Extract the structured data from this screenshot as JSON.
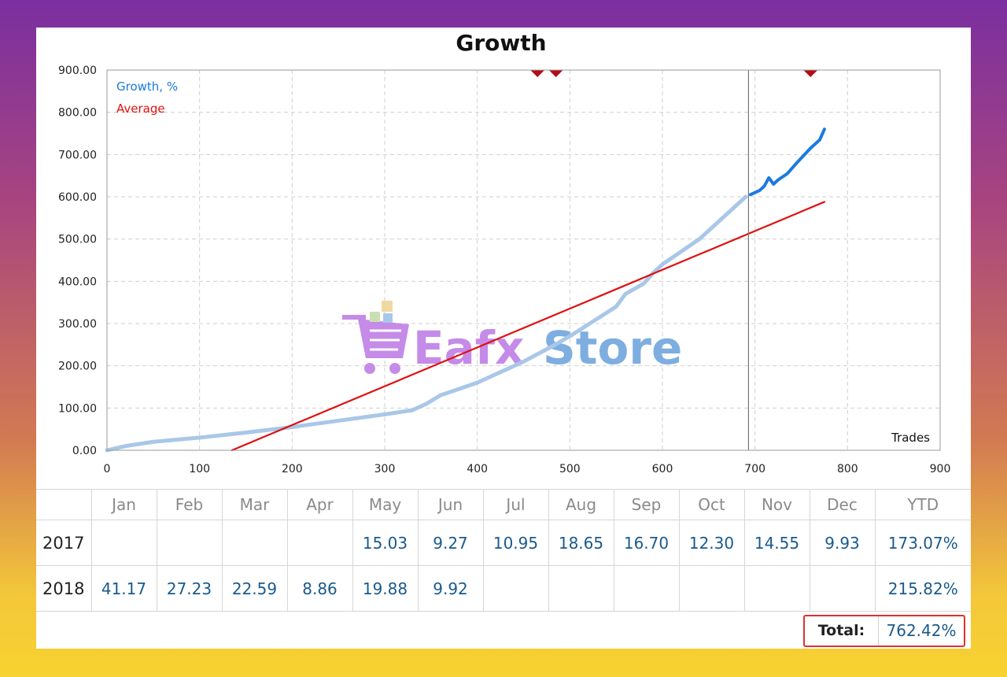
{
  "chart_data": {
    "type": "line",
    "title": "Growth",
    "xlabel": "Trades",
    "ylabel": "",
    "xlim": [
      0,
      900
    ],
    "ylim": [
      0,
      900
    ],
    "xticks": [
      "0",
      "100",
      "200",
      "300",
      "400",
      "500",
      "600",
      "700",
      "800",
      "900"
    ],
    "yticks": [
      "0.00",
      "100.00",
      "200.00",
      "300.00",
      "400.00",
      "500.00",
      "600.00",
      "700.00",
      "800.00",
      "900.00"
    ],
    "grid": true,
    "legend": "top-left",
    "series": [
      {
        "name": "Growth, %",
        "color": "#a9c7e8",
        "x": [
          0,
          10,
          20,
          50,
          100,
          150,
          200,
          250,
          300,
          330,
          345,
          360,
          400,
          450,
          480,
          500,
          550,
          560,
          580,
          590,
          600,
          640,
          690
        ],
        "y": [
          0,
          5,
          10,
          20,
          30,
          42,
          55,
          70,
          85,
          95,
          110,
          130,
          160,
          210,
          245,
          270,
          340,
          370,
          395,
          420,
          440,
          500,
          600
        ]
      },
      {
        "name": "",
        "color": "#1a7ae0",
        "x": [
          695,
          705,
          710,
          715,
          720,
          725,
          735,
          745,
          760,
          770,
          775
        ],
        "y": [
          605,
          615,
          625,
          645,
          630,
          640,
          655,
          680,
          715,
          735,
          760
        ]
      },
      {
        "name": "Average",
        "color": "#e01010",
        "x": [
          135,
          775
        ],
        "y": [
          0,
          588
        ]
      }
    ],
    "markers_x": [
      465,
      485,
      760
    ],
    "current_x": 693
  },
  "colors": {
    "growth_light": "#a9c7e8",
    "growth_dark": "#1a7ae0",
    "average": "#e01010",
    "marker": "#b00e18",
    "watermark_purple": "#c58be8",
    "watermark_blue": "#7eaee0"
  },
  "legend": {
    "growth": "Growth, %",
    "average": "Average"
  },
  "watermark": {
    "text_1": "Eafx",
    "text_2": "Store"
  },
  "table": {
    "headers": [
      "",
      "Jan",
      "Feb",
      "Mar",
      "Apr",
      "May",
      "Jun",
      "Jul",
      "Aug",
      "Sep",
      "Oct",
      "Nov",
      "Dec",
      "YTD"
    ],
    "rows": [
      {
        "year": "2017",
        "values": [
          "",
          "",
          "",
          "",
          "15.03",
          "9.27",
          "10.95",
          "18.65",
          "16.70",
          "12.30",
          "14.55",
          "9.93"
        ],
        "ytd": "173.07%"
      },
      {
        "year": "2018",
        "values": [
          "41.17",
          "27.23",
          "22.59",
          "8.86",
          "19.88",
          "9.92",
          "",
          "",
          "",
          "",
          "",
          ""
        ],
        "ytd": "215.82%"
      }
    ],
    "total_label": "Total:",
    "total_value": "762.42%"
  }
}
